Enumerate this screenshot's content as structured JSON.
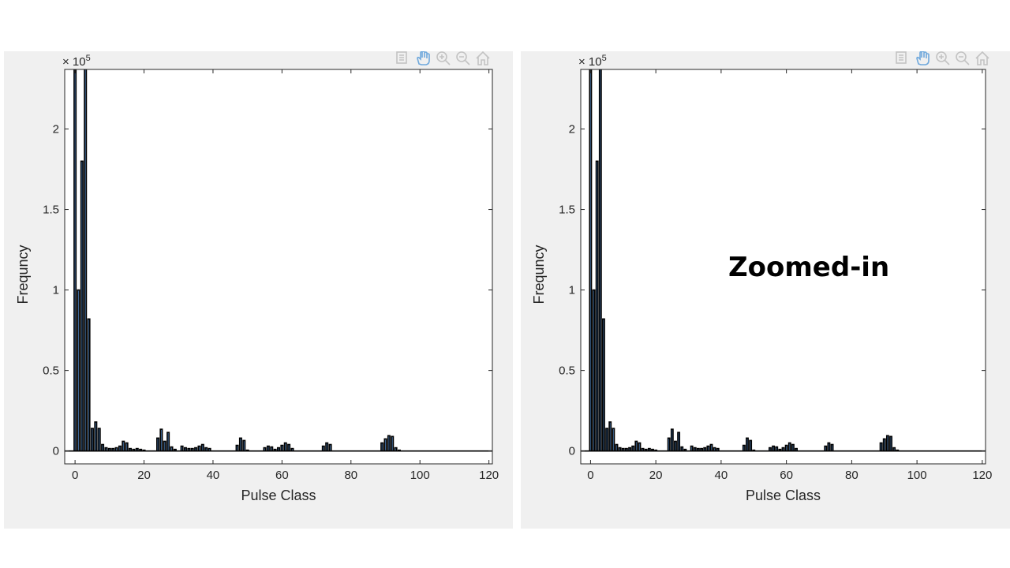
{
  "annotation": "Zoomed-in",
  "toolbar_icons": [
    "brush-icon",
    "pan-hand-icon",
    "zoom-in-icon",
    "zoom-out-icon",
    "home-icon"
  ],
  "colors": {
    "bar_fill": "#4d7fb8",
    "bar_edge": "#000000",
    "panel_bg": "#f0f0f0",
    "axes_bg": "#ffffff",
    "axis": "#262626"
  },
  "chart_data": [
    {
      "type": "bar",
      "xlabel": "Pulse Class",
      "ylabel": "Frequncy",
      "exponent_label": "× 10",
      "exponent_power": "5",
      "xlim": [
        -3,
        121
      ],
      "ylim": [
        -8000,
        237000
      ],
      "xticks": [
        0,
        20,
        40,
        60,
        80,
        100,
        120
      ],
      "yticks": [
        0,
        50000,
        100000,
        150000,
        200000
      ],
      "ytick_labels": [
        "0",
        "0.5",
        "1",
        "1.5",
        "2"
      ],
      "x": [
        0,
        1,
        2,
        3,
        4,
        5,
        6,
        7,
        8,
        9,
        10,
        11,
        12,
        13,
        14,
        15,
        16,
        17,
        18,
        19,
        20,
        24,
        25,
        26,
        27,
        28,
        29,
        31,
        32,
        33,
        34,
        35,
        36,
        37,
        38,
        39,
        47,
        48,
        49,
        50,
        55,
        56,
        57,
        58,
        59,
        60,
        61,
        62,
        63,
        72,
        73,
        74,
        89,
        90,
        91,
        92,
        93,
        94
      ],
      "values": [
        240000,
        100000,
        180000,
        240000,
        82000,
        14000,
        18000,
        14000,
        4000,
        2000,
        1500,
        1500,
        2000,
        3000,
        6000,
        5000,
        1500,
        1000,
        1500,
        1000,
        500,
        8000,
        13500,
        6000,
        11500,
        2500,
        1000,
        3000,
        2000,
        1500,
        1500,
        2000,
        3000,
        4000,
        2000,
        1500,
        3500,
        8000,
        6500,
        500,
        2000,
        3000,
        2500,
        1000,
        2000,
        3500,
        5000,
        4000,
        1500,
        3000,
        5000,
        4000,
        5000,
        7500,
        9500,
        9000,
        2000,
        500
      ]
    },
    {
      "type": "bar",
      "xlabel": "Pulse Class",
      "ylabel": "Frequncy",
      "exponent_label": "× 10",
      "exponent_power": "5",
      "xlim": [
        -3,
        121
      ],
      "ylim": [
        -8000,
        237000
      ],
      "xticks": [
        0,
        20,
        40,
        60,
        80,
        100,
        120
      ],
      "yticks": [
        0,
        50000,
        100000,
        150000,
        200000
      ],
      "ytick_labels": [
        "0",
        "0.5",
        "1",
        "1.5",
        "2"
      ],
      "x": [
        0,
        1,
        2,
        3,
        4,
        5,
        6,
        7,
        8,
        9,
        10,
        11,
        12,
        13,
        14,
        15,
        16,
        17,
        18,
        19,
        20,
        24,
        25,
        26,
        27,
        28,
        29,
        31,
        32,
        33,
        34,
        35,
        36,
        37,
        38,
        39,
        47,
        48,
        49,
        50,
        55,
        56,
        57,
        58,
        59,
        60,
        61,
        62,
        63,
        72,
        73,
        74,
        89,
        90,
        91,
        92,
        93,
        94
      ],
      "values": [
        240000,
        100000,
        180000,
        240000,
        82000,
        14000,
        18000,
        14000,
        4000,
        2000,
        1500,
        1500,
        2000,
        3000,
        6000,
        5000,
        1500,
        1000,
        1500,
        1000,
        500,
        8000,
        13500,
        6000,
        11500,
        2500,
        1000,
        3000,
        2000,
        1500,
        1500,
        2000,
        3000,
        4000,
        2000,
        1500,
        3500,
        8000,
        6500,
        500,
        2000,
        3000,
        2500,
        1000,
        2000,
        3500,
        5000,
        4000,
        1500,
        3000,
        5000,
        4000,
        5000,
        7500,
        9500,
        9000,
        2000,
        500
      ]
    }
  ]
}
